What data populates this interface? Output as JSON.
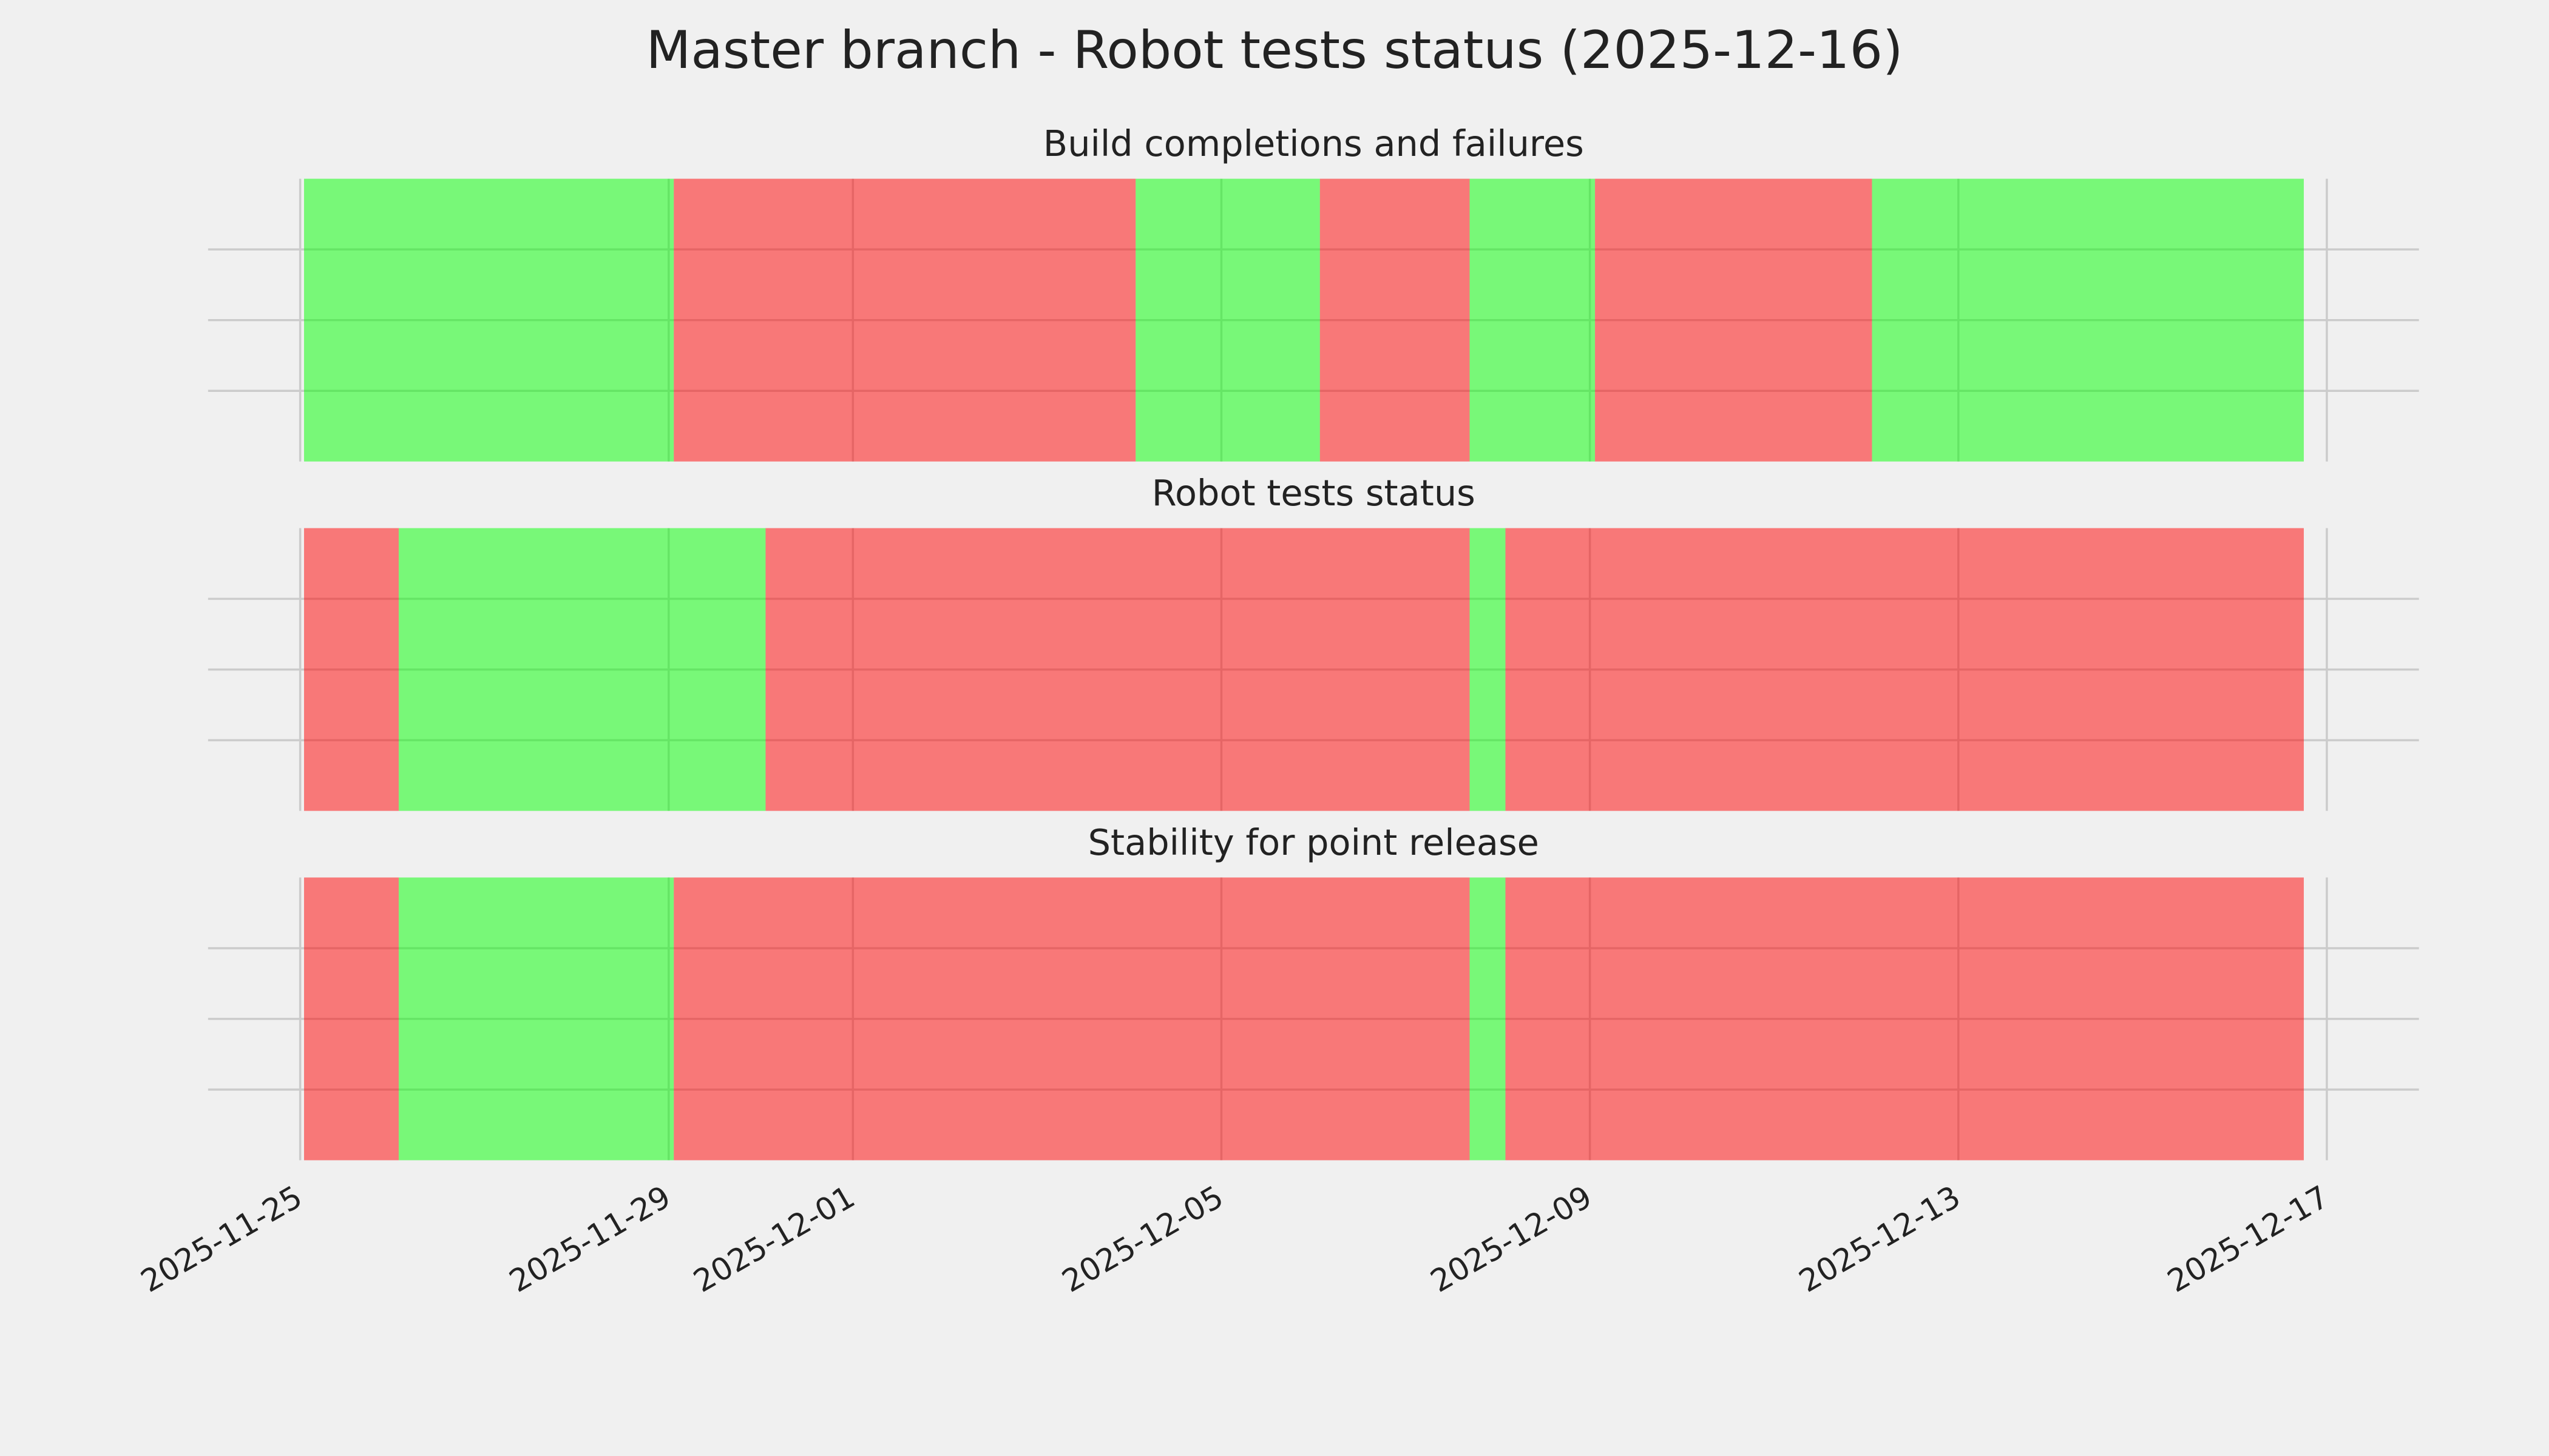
{
  "title": "Master branch - Robot tests status (2025-12-16)",
  "chart_data": [
    {
      "type": "timeline",
      "title": "Build completions and failures",
      "spans": [
        {
          "start": "2025-11-25 01:00",
          "end": "2025-11-29 01:20",
          "color": "#00ff00"
        },
        {
          "start": "2025-11-29 01:20",
          "end": "2025-12-04 01:40",
          "color": "#ff0000"
        },
        {
          "start": "2025-12-04 01:40",
          "end": "2025-12-06 01:40",
          "color": "#00ff00"
        },
        {
          "start": "2025-12-06 01:40",
          "end": "2025-12-07 16:40",
          "color": "#ff0000"
        },
        {
          "start": "2025-12-07 16:40",
          "end": "2025-12-09 01:20",
          "color": "#00ff00"
        },
        {
          "start": "2025-12-09 01:20",
          "end": "2025-12-12 01:30",
          "color": "#ff0000"
        },
        {
          "start": "2025-12-12 01:30",
          "end": "2025-12-16 18:00",
          "color": "#00ff00"
        }
      ],
      "alpha": 0.5,
      "xlim": [
        "2025-11-24",
        "2025-12-18"
      ],
      "xticks": [
        "2025-11-25",
        "2025-11-29",
        "2025-12-01",
        "2025-12-05",
        "2025-12-09",
        "2025-12-13",
        "2025-12-17"
      ],
      "ylim": [
        0,
        1
      ],
      "yticks": [
        0.25,
        0.5,
        0.75
      ],
      "grid": true
    },
    {
      "type": "timeline",
      "title": "Robot tests status",
      "spans": [
        {
          "start": "2025-11-25 01:00",
          "end": "2025-11-26 01:40",
          "color": "#ff0000"
        },
        {
          "start": "2025-11-26 01:40",
          "end": "2025-11-30 01:15",
          "color": "#00ff00"
        },
        {
          "start": "2025-11-30 01:15",
          "end": "2025-12-07 16:40",
          "color": "#ff0000"
        },
        {
          "start": "2025-12-07 16:40",
          "end": "2025-12-08 02:00",
          "color": "#00ff00"
        },
        {
          "start": "2025-12-08 02:00",
          "end": "2025-12-16 18:00",
          "color": "#ff0000"
        }
      ],
      "alpha": 0.5,
      "xlim": [
        "2025-11-24",
        "2025-12-18"
      ],
      "xticks": [
        "2025-11-25",
        "2025-11-29",
        "2025-12-01",
        "2025-12-05",
        "2025-12-09",
        "2025-12-13",
        "2025-12-17"
      ],
      "ylim": [
        0,
        1
      ],
      "yticks": [
        0.25,
        0.5,
        0.75
      ],
      "grid": true
    },
    {
      "type": "timeline",
      "title": "Stability for point release",
      "spans": [
        {
          "start": "2025-11-25 01:00",
          "end": "2025-11-26 01:40",
          "color": "#ff0000"
        },
        {
          "start": "2025-11-26 01:40",
          "end": "2025-11-29 01:20",
          "color": "#00ff00"
        },
        {
          "start": "2025-11-29 01:20",
          "end": "2025-12-07 16:40",
          "color": "#ff0000"
        },
        {
          "start": "2025-12-07 16:40",
          "end": "2025-12-08 02:00",
          "color": "#00ff00"
        },
        {
          "start": "2025-12-08 02:00",
          "end": "2025-12-16 18:00",
          "color": "#ff0000"
        }
      ],
      "alpha": 0.5,
      "xlim": [
        "2025-11-24",
        "2025-12-18"
      ],
      "xticks": [
        "2025-11-25",
        "2025-11-29",
        "2025-12-01",
        "2025-12-05",
        "2025-12-09",
        "2025-12-13",
        "2025-12-17"
      ],
      "ylim": [
        0,
        1
      ],
      "yticks": [
        0.25,
        0.5,
        0.75
      ],
      "grid": true
    }
  ]
}
